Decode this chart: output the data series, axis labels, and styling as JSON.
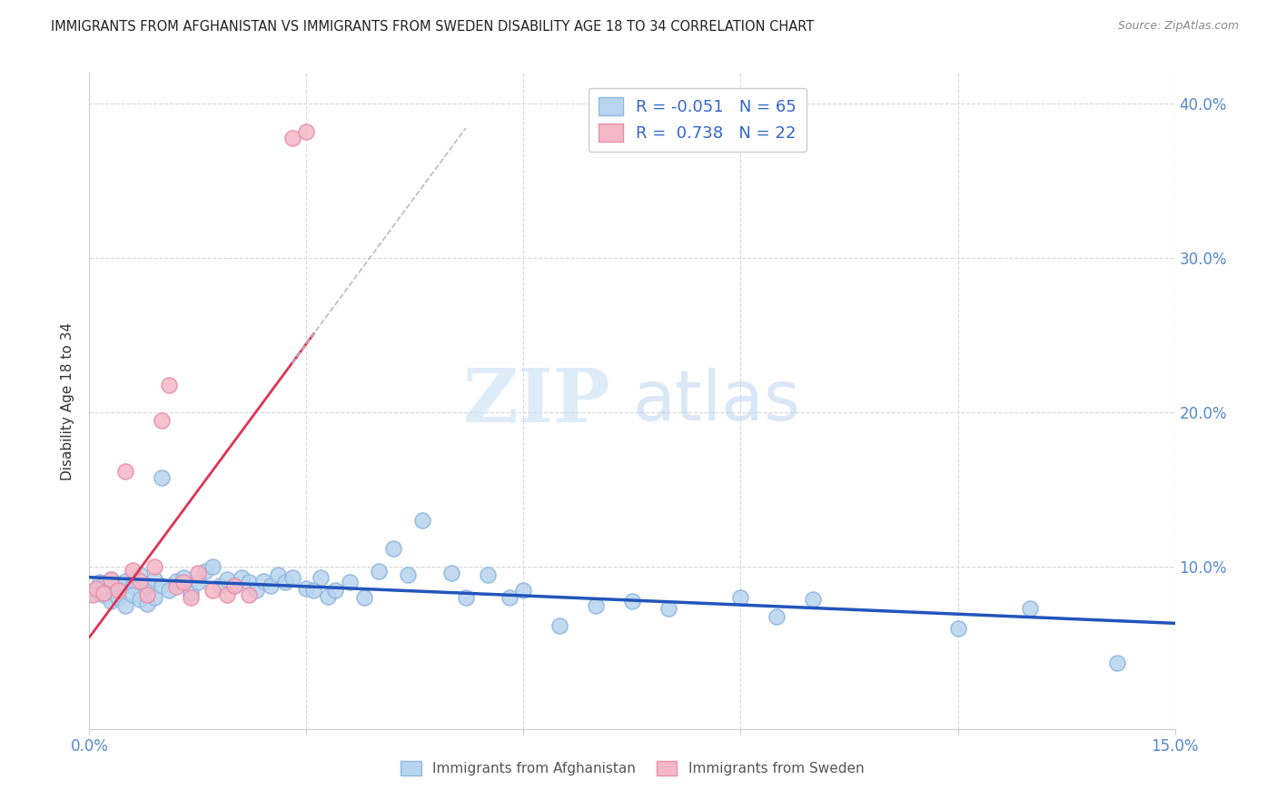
{
  "title": "IMMIGRANTS FROM AFGHANISTAN VS IMMIGRANTS FROM SWEDEN DISABILITY AGE 18 TO 34 CORRELATION CHART",
  "source": "Source: ZipAtlas.com",
  "ylabel_label": "Disability Age 18 to 34",
  "xlim": [
    0.0,
    0.15
  ],
  "ylim": [
    -0.005,
    0.42
  ],
  "background_color": "#ffffff",
  "grid_color": "#d8d8d8",
  "legend_R_afghanistan": "-0.051",
  "legend_N_afghanistan": "65",
  "legend_R_sweden": "0.738",
  "legend_N_sweden": "22",
  "afghanistan_color_face": "#b8d4ee",
  "afghanistan_color_edge": "#90b8e0",
  "sweden_color_face": "#f5b8c8",
  "sweden_color_edge": "#e890a8",
  "trendline_afghanistan_color": "#2255bb",
  "trendline_sweden_color": "#dd3355",
  "trendline_dashed_color": "#bbbbbb",
  "title_color": "#222222",
  "source_color": "#888888",
  "axis_label_color": "#333333",
  "tick_color": "#5588cc",
  "watermark_zip_color": "#d0e4f5",
  "watermark_atlas_color": "#c0d8f0",
  "afg_x": [
    0.0005,
    0.001,
    0.0015,
    0.002,
    0.002,
    0.003,
    0.003,
    0.004,
    0.004,
    0.005,
    0.005,
    0.006,
    0.006,
    0.007,
    0.007,
    0.008,
    0.008,
    0.009,
    0.009,
    0.01,
    0.01,
    0.011,
    0.012,
    0.013,
    0.014,
    0.015,
    0.016,
    0.017,
    0.018,
    0.019,
    0.02,
    0.021,
    0.022,
    0.023,
    0.024,
    0.025,
    0.026,
    0.027,
    0.028,
    0.03,
    0.031,
    0.032,
    0.033,
    0.034,
    0.036,
    0.038,
    0.04,
    0.042,
    0.044,
    0.046,
    0.05,
    0.052,
    0.055,
    0.058,
    0.06,
    0.065,
    0.07,
    0.075,
    0.08,
    0.09,
    0.095,
    0.1,
    0.12,
    0.13,
    0.142
  ],
  "afg_y": [
    0.083,
    0.085,
    0.09,
    0.088,
    0.082,
    0.092,
    0.078,
    0.086,
    0.08,
    0.091,
    0.075,
    0.088,
    0.082,
    0.095,
    0.079,
    0.088,
    0.076,
    0.092,
    0.08,
    0.088,
    0.158,
    0.085,
    0.091,
    0.093,
    0.083,
    0.09,
    0.097,
    0.1,
    0.088,
    0.092,
    0.088,
    0.093,
    0.09,
    0.085,
    0.091,
    0.088,
    0.095,
    0.09,
    0.093,
    0.086,
    0.085,
    0.093,
    0.081,
    0.085,
    0.09,
    0.08,
    0.097,
    0.112,
    0.095,
    0.13,
    0.096,
    0.08,
    0.095,
    0.08,
    0.085,
    0.062,
    0.075,
    0.078,
    0.073,
    0.08,
    0.068,
    0.079,
    0.06,
    0.073,
    0.038
  ],
  "swe_x": [
    0.0005,
    0.001,
    0.002,
    0.003,
    0.004,
    0.005,
    0.006,
    0.007,
    0.008,
    0.009,
    0.01,
    0.011,
    0.012,
    0.013,
    0.014,
    0.015,
    0.017,
    0.019,
    0.02,
    0.022,
    0.028,
    0.03
  ],
  "swe_y": [
    0.082,
    0.086,
    0.083,
    0.092,
    0.085,
    0.162,
    0.098,
    0.091,
    0.082,
    0.1,
    0.195,
    0.218,
    0.087,
    0.09,
    0.08,
    0.096,
    0.085,
    0.082,
    0.088,
    0.082,
    0.378,
    0.382
  ]
}
